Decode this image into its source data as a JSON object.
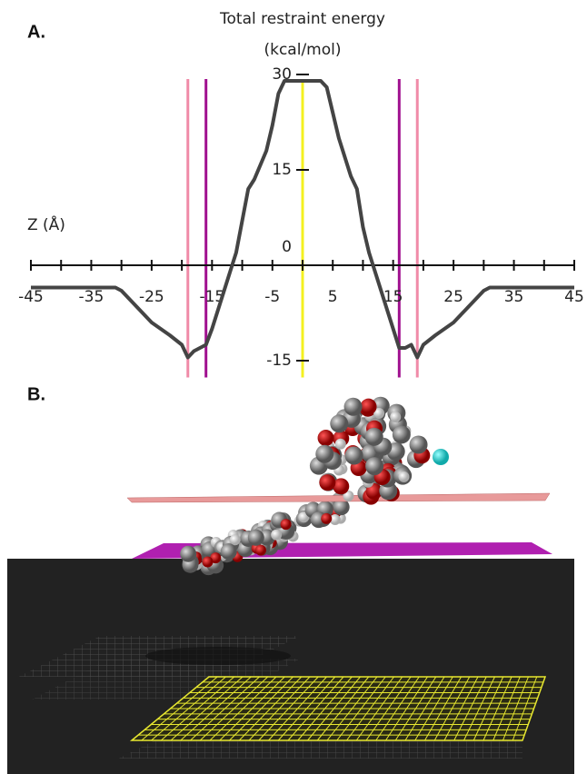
{
  "panel_labels": [
    "A.",
    "B."
  ],
  "chart_data": {
    "type": "line",
    "ylabel": [
      "Total restraint energy",
      "(kcal/mol)"
    ],
    "xlabel": "Z (Å)",
    "x": [
      -45,
      -31,
      -30,
      -28,
      -25,
      -22,
      -20,
      -19,
      -18,
      -17,
      -16,
      -15,
      -13,
      -11,
      -10,
      -9,
      -8,
      -6,
      -5,
      -4,
      -3,
      0,
      3,
      4,
      5,
      6,
      8,
      9,
      10,
      11,
      13,
      15,
      16,
      17,
      18,
      19,
      20,
      22,
      25,
      28,
      30,
      31,
      45
    ],
    "series": [
      {
        "color": "#444444",
        "values": [
          -3.5,
          -3.5,
          -4,
          -6,
          -9,
          -11,
          -12.5,
          -14.5,
          -13.5,
          -13,
          -12.5,
          -10,
          -4,
          2,
          7,
          12,
          13.5,
          18,
          22,
          27,
          29,
          29,
          29,
          28,
          24,
          20,
          14,
          12,
          6,
          2,
          -4,
          -10,
          -13,
          -13,
          -12.5,
          -14.5,
          -12.5,
          -11,
          -9,
          -6,
          -4,
          -3.5,
          -3.5
        ]
      }
    ],
    "xlim": [
      -45,
      45
    ],
    "xticks": [
      -45,
      -35,
      -25,
      -15,
      -5,
      5,
      15,
      25,
      35,
      45
    ],
    "xminorticks": [
      -40,
      -30,
      -20,
      -10,
      0,
      10,
      20,
      30,
      40
    ],
    "ylim": [
      -16.5,
      30
    ],
    "yticks": [
      -15,
      0,
      15,
      30
    ],
    "reference_lines": [
      {
        "x": -19,
        "color": "#f08aa8"
      },
      {
        "x": -16,
        "color": "#a0108f"
      },
      {
        "x": 0,
        "color": "#f4f020"
      },
      {
        "x": 16,
        "color": "#a0108f"
      },
      {
        "x": 19,
        "color": "#f08aa8"
      }
    ]
  }
}
